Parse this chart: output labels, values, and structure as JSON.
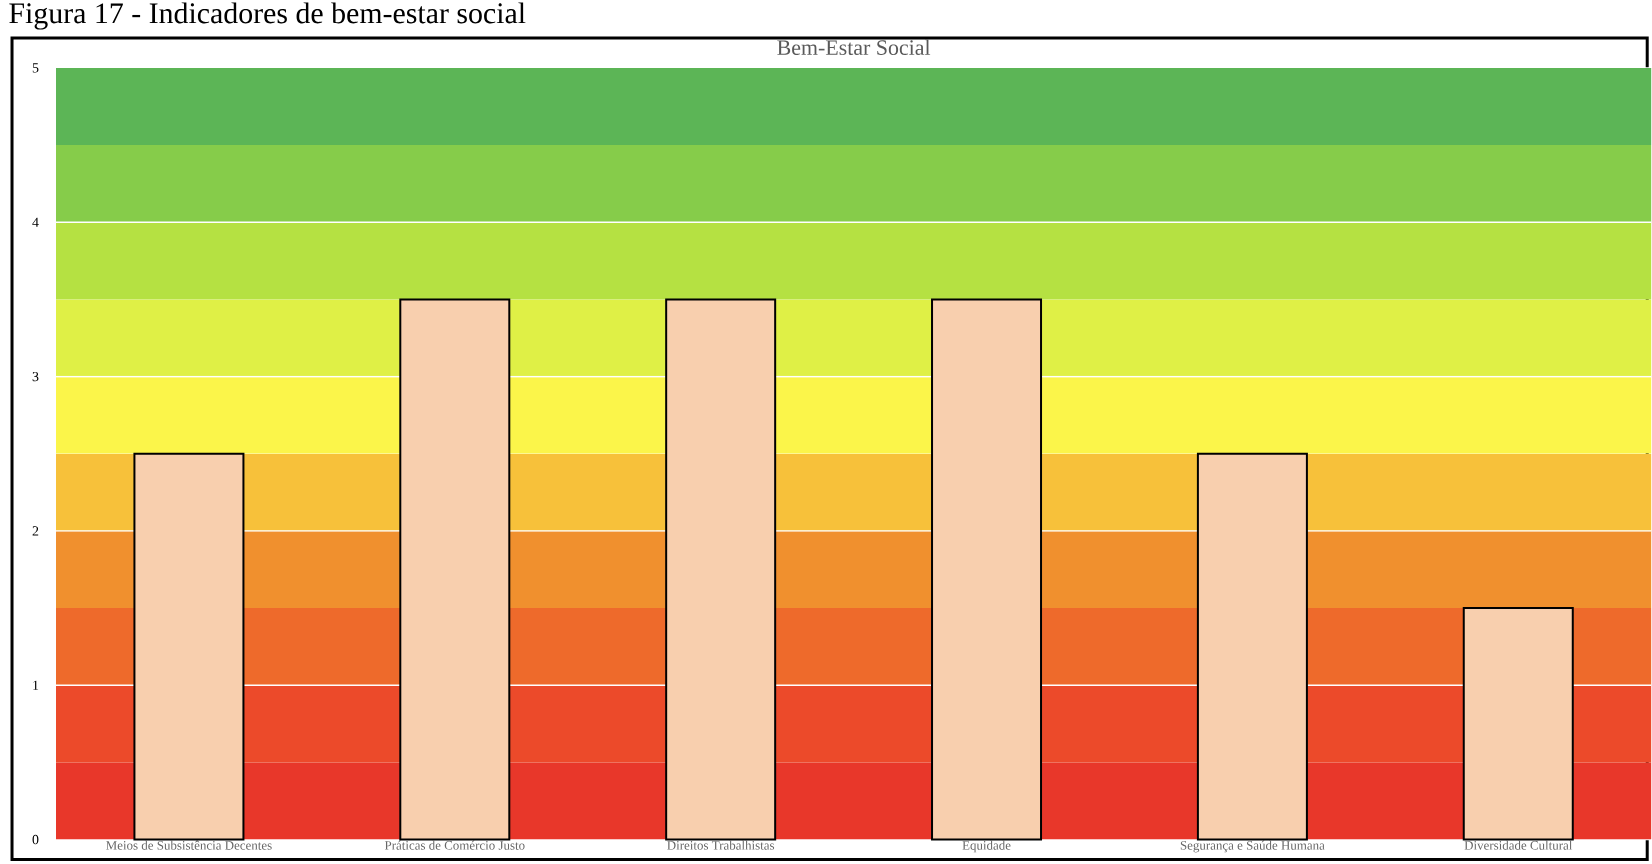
{
  "chart_data": {
    "type": "bar",
    "title": "Bem-Estar Social",
    "annotations": [
      "Figura 17 - Indicadores de bem-estar social"
    ],
    "categories": [
      "Meios de Subsistência Decentes",
      "Práticas de Comércio Justo",
      "Direitos Trabalhistas",
      "Equidade",
      "Segurança e Saúde Humana",
      "Diversidade Cultural"
    ],
    "values": [
      2.5,
      3.5,
      3.5,
      3.5,
      2.5,
      1.5
    ],
    "color": "#f8cfae",
    "ylim": [
      0,
      5
    ],
    "yticks": [
      0,
      1,
      2,
      3,
      4,
      5
    ],
    "grid": "y",
    "bands": [
      {
        "axis": "y",
        "from": 0,
        "to": 0.5,
        "color": "#e8372a"
      },
      {
        "axis": "y",
        "from": 0.5,
        "to": 1,
        "color": "#ec4a2a"
      },
      {
        "axis": "y",
        "from": 1,
        "to": 1.5,
        "color": "#ee6a2b"
      },
      {
        "axis": "y",
        "from": 1.5,
        "to": 2,
        "color": "#f0902e"
      },
      {
        "axis": "y",
        "from": 2,
        "to": 2.5,
        "color": "#f7c13a"
      },
      {
        "axis": "y",
        "from": 2.5,
        "to": 3,
        "color": "#fbf54a"
      },
      {
        "axis": "y",
        "from": 3,
        "to": 3.5,
        "color": "#dff046"
      },
      {
        "axis": "y",
        "from": 3.5,
        "to": 4,
        "color": "#b5e142"
      },
      {
        "axis": "y",
        "from": 4,
        "to": 4.5,
        "color": "#86cc4a"
      },
      {
        "axis": "y",
        "from": 4.5,
        "to": 5,
        "color": "#5cb556"
      }
    ]
  }
}
